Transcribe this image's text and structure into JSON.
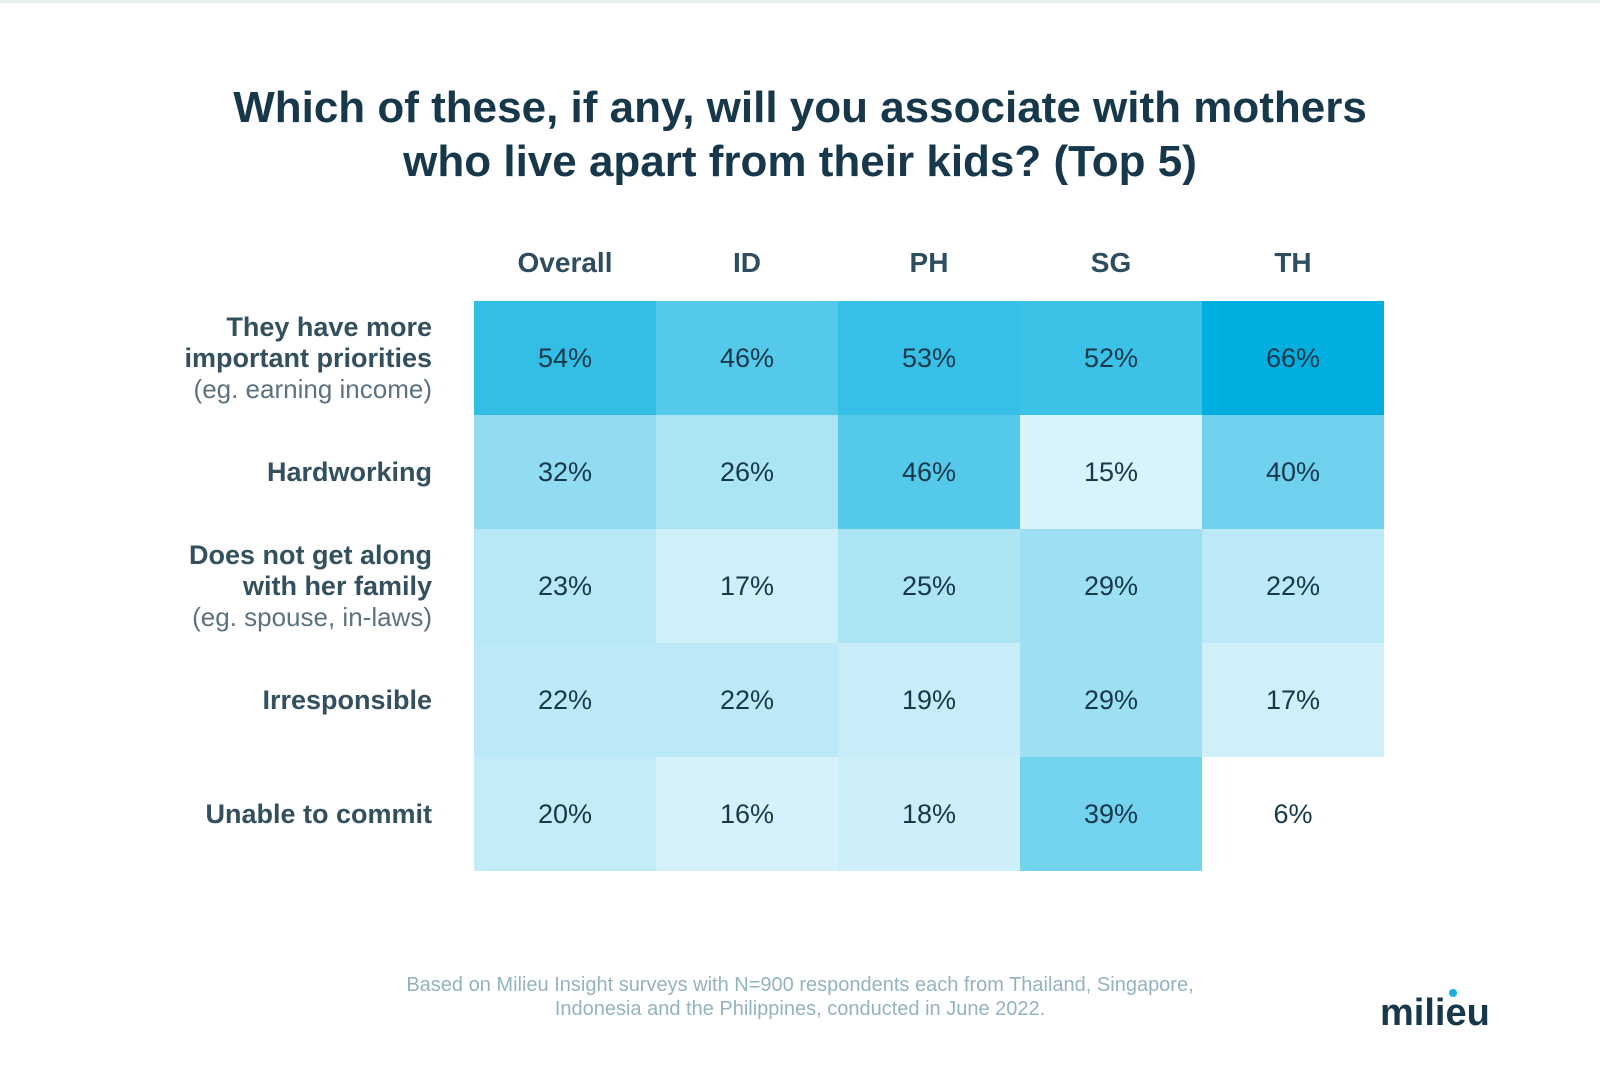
{
  "title_lines": [
    "Which of these, if any, will you associate with mothers",
    "who live apart from their kids? (Top 5)"
  ],
  "chart_data": {
    "type": "heatmap",
    "title": "Which of these, if any, will you associate with mothers who live apart from their kids? (Top 5)",
    "columns": [
      "Overall",
      "ID",
      "PH",
      "SG",
      "TH"
    ],
    "rows": [
      {
        "label": "They have more important priorities",
        "label_lines": [
          "They have more",
          "important priorities"
        ],
        "sublabel": "(eg. earning income)"
      },
      {
        "label": "Hardworking",
        "label_lines": [
          "Hardworking"
        ],
        "sublabel": ""
      },
      {
        "label": "Does not get along with her family",
        "label_lines": [
          "Does not get along",
          "with her family"
        ],
        "sublabel": "(eg. spouse, in-laws)"
      },
      {
        "label": "Irresponsible",
        "label_lines": [
          "Irresponsible"
        ],
        "sublabel": ""
      },
      {
        "label": "Unable to commit",
        "label_lines": [
          "Unable to commit"
        ],
        "sublabel": ""
      }
    ],
    "values": [
      [
        54,
        46,
        53,
        52,
        66
      ],
      [
        32,
        26,
        46,
        15,
        40
      ],
      [
        23,
        17,
        25,
        29,
        22
      ],
      [
        22,
        22,
        19,
        29,
        17
      ],
      [
        20,
        16,
        18,
        39,
        6
      ]
    ],
    "value_suffix": "%",
    "color_scale": {
      "low": "#ffffff",
      "high": "#00aee0",
      "min": 6,
      "max": 66
    }
  },
  "footnote_lines": [
    "Based on Milieu Insight surveys with N=900 respondents each from Thailand, Singapore,",
    "Indonesia and the Philippines, conducted in June 2022."
  ],
  "brand": {
    "logo_text": "milieu",
    "color": "#17384a",
    "accent": "#1ab0dd"
  }
}
